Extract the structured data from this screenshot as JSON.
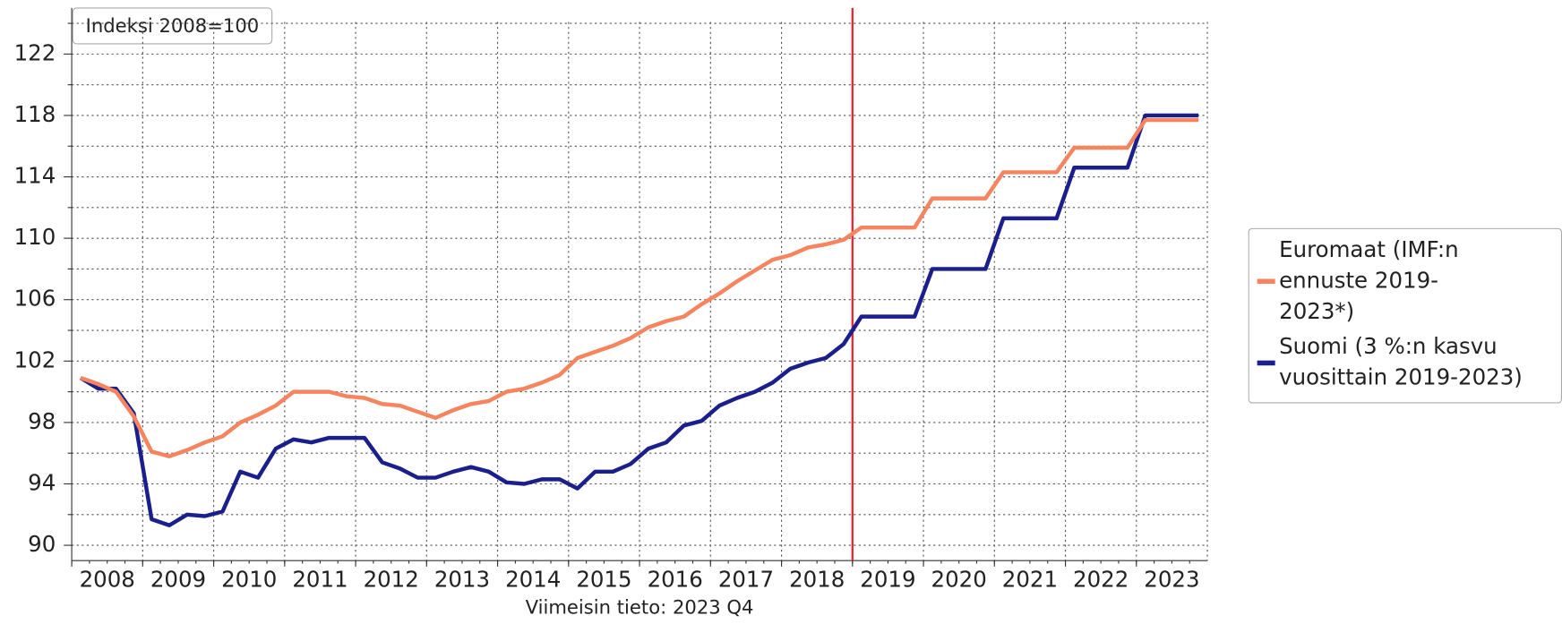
{
  "chart_data": {
    "type": "line",
    "title": "Indeksi 2008=100",
    "subtitle": "Viimeisin tieto: 2023 Q4",
    "categories": [
      "2008",
      null,
      null,
      null,
      "2009",
      null,
      null,
      null,
      "2010",
      null,
      null,
      null,
      "2011",
      null,
      null,
      null,
      "2012",
      null,
      null,
      null,
      "2013",
      null,
      null,
      null,
      "2014",
      null,
      null,
      null,
      "2015",
      null,
      null,
      null,
      "2016",
      null,
      null,
      null,
      "2017",
      null,
      null,
      null,
      "2018",
      null,
      null,
      null,
      "2019",
      null,
      null,
      null,
      "2020",
      null,
      null,
      null,
      "2021",
      null,
      null,
      null,
      "2022",
      null,
      null,
      null,
      "2023",
      null,
      null,
      null
    ],
    "series": [
      {
        "name": "Euromaat (IMF:n ennuste 2019-2023*)",
        "color": "#f5845f",
        "values": [
          100.9,
          100.5,
          100.0,
          98.4,
          96.1,
          95.8,
          96.2,
          96.7,
          97.1,
          98.0,
          98.5,
          99.1,
          100.0,
          100.0,
          100.0,
          99.7,
          99.6,
          99.2,
          99.1,
          98.7,
          98.3,
          98.8,
          99.2,
          99.4,
          100.0,
          100.2,
          100.6,
          101.1,
          102.2,
          102.6,
          103.0,
          103.5,
          104.2,
          104.6,
          104.9,
          105.7,
          106.4,
          107.2,
          107.9,
          108.6,
          108.9,
          109.4,
          109.6,
          109.9,
          110.7,
          110.7,
          110.7,
          110.7,
          112.6,
          112.6,
          112.6,
          112.6,
          114.3,
          114.3,
          114.3,
          114.3,
          115.9,
          115.9,
          115.9,
          115.9,
          117.7,
          117.7,
          117.7,
          117.7
        ]
      },
      {
        "name": "Suomi (3 %:n kasvu vuosittain 2019-2023)",
        "color": "#1a1f8c",
        "values": [
          100.9,
          100.2,
          100.2,
          98.6,
          91.7,
          91.3,
          92.0,
          91.9,
          92.2,
          94.8,
          94.4,
          96.3,
          96.9,
          96.7,
          97.0,
          97.0,
          97.0,
          95.4,
          95.0,
          94.4,
          94.4,
          94.8,
          95.1,
          94.8,
          94.1,
          94.0,
          94.3,
          94.3,
          93.7,
          94.8,
          94.8,
          95.3,
          96.3,
          96.7,
          97.8,
          98.1,
          99.1,
          99.6,
          100.0,
          100.6,
          101.5,
          101.9,
          102.2,
          103.1,
          104.9,
          104.9,
          104.9,
          104.9,
          108.0,
          108.0,
          108.0,
          108.0,
          111.3,
          111.3,
          111.3,
          111.3,
          114.6,
          114.6,
          114.6,
          114.6,
          118.0,
          118.0,
          118.0,
          118.0
        ]
      }
    ],
    "ylim": [
      89,
      125
    ],
    "yticks": [
      90,
      94,
      98,
      102,
      106,
      110,
      114,
      118,
      122
    ],
    "yminor": [
      92,
      96,
      100,
      104,
      108,
      112,
      116,
      120,
      124
    ],
    "grid": true,
    "vline": {
      "category": "2019",
      "color": "#e8202a"
    },
    "legend": "right"
  }
}
